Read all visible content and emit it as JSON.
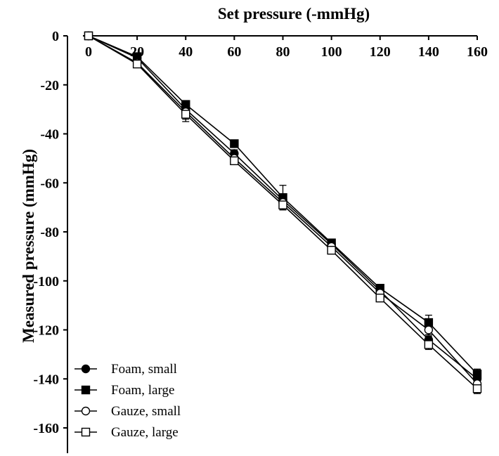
{
  "chart_data": {
    "type": "line",
    "title": "",
    "xlabel": "Set pressure (-mmHg)",
    "ylabel": "Measured pressure (mmHg)",
    "x": [
      0,
      20,
      40,
      60,
      80,
      100,
      120,
      140,
      160
    ],
    "xlim": [
      0,
      160
    ],
    "ylim": [
      -160,
      0
    ],
    "xticks": [
      "0",
      "20",
      "40",
      "60",
      "80",
      "100",
      "120",
      "140",
      "160"
    ],
    "yticks": [
      "0",
      "-20",
      "-40",
      "-60",
      "-80",
      "-100",
      "-120",
      "-140",
      "-160"
    ],
    "x_axis_position": "top",
    "grid": false,
    "legend_position": "bottom-left",
    "series": [
      {
        "name": "Foam, small",
        "marker": "filled-circle",
        "values": [
          0,
          -9,
          -30,
          -48,
          -67,
          -85,
          -104,
          -124,
          -140
        ],
        "errors": [
          0,
          1,
          2,
          1.5,
          2,
          1.5,
          1.5,
          1.5,
          2
        ]
      },
      {
        "name": "Foam, large",
        "marker": "filled-square",
        "values": [
          0,
          -8.5,
          -28,
          -44,
          -66,
          -84.5,
          -103,
          -117,
          -138
        ],
        "errors": [
          0,
          1,
          1.5,
          1.5,
          5,
          1.5,
          1.5,
          3,
          2
        ]
      },
      {
        "name": "Gauze, small",
        "marker": "open-circle",
        "values": [
          0,
          -11,
          -31,
          -50,
          -68,
          -86,
          -105,
          -120,
          -142
        ],
        "errors": [
          0,
          1,
          4,
          1.5,
          3,
          1.5,
          1.5,
          2,
          2
        ]
      },
      {
        "name": "Gauze, large",
        "marker": "open-square",
        "values": [
          0,
          -11.5,
          -32,
          -51,
          -69,
          -87.5,
          -107,
          -126,
          -144
        ],
        "errors": [
          0,
          1,
          2,
          1.5,
          2,
          1.5,
          1.5,
          2,
          2
        ]
      }
    ]
  }
}
